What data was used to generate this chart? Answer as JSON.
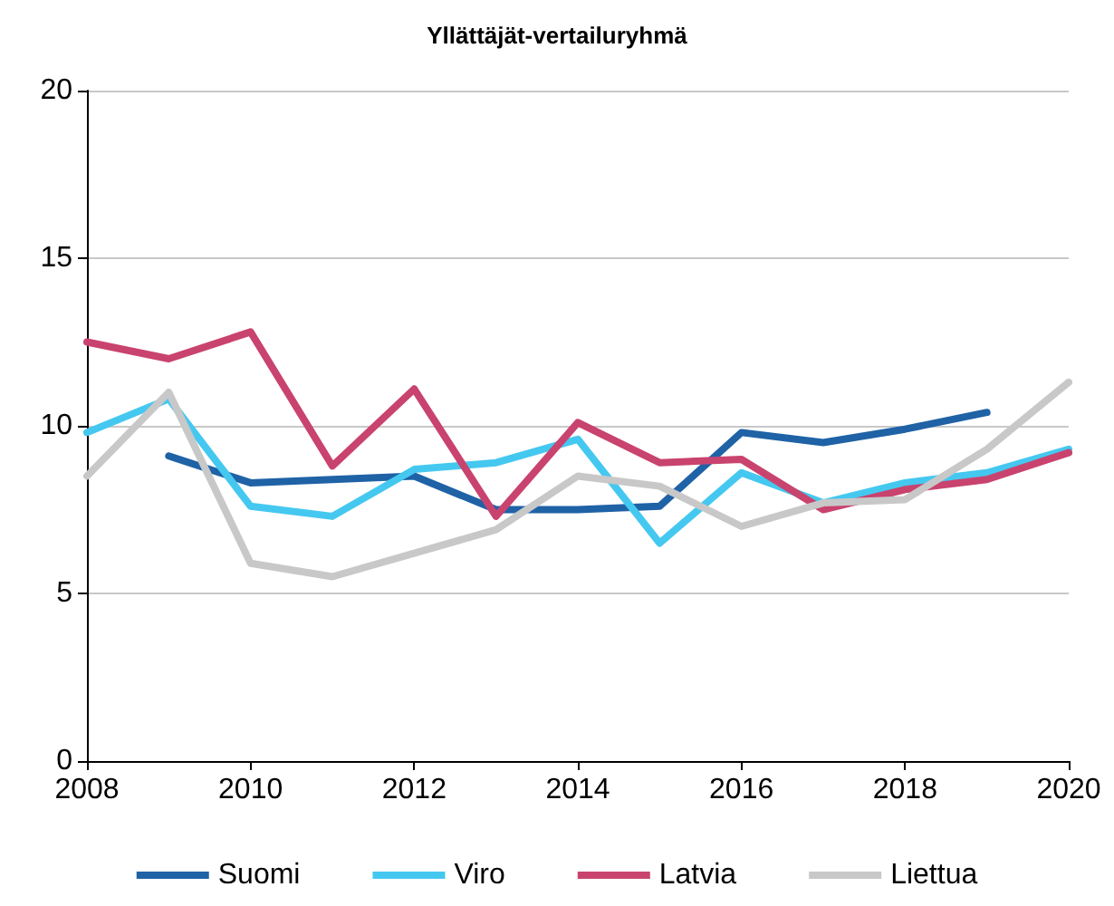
{
  "chart_data": {
    "type": "line",
    "title": "Yllättäjät-vertailuryhmä",
    "x": [
      2008,
      2009,
      2010,
      2011,
      2012,
      2013,
      2014,
      2015,
      2016,
      2017,
      2018,
      2019,
      2020
    ],
    "series": [
      {
        "name": "Suomi",
        "color": "#1f62a6",
        "values": [
          null,
          9.1,
          8.3,
          8.4,
          8.5,
          7.5,
          7.5,
          7.6,
          9.8,
          9.5,
          9.9,
          10.4,
          null
        ]
      },
      {
        "name": "Viro",
        "color": "#45c8f0",
        "values": [
          9.8,
          10.8,
          7.6,
          7.3,
          8.7,
          8.9,
          9.6,
          6.5,
          8.6,
          7.7,
          8.3,
          8.6,
          9.3
        ]
      },
      {
        "name": "Latvia",
        "color": "#c9436f",
        "values": [
          12.5,
          12.0,
          12.8,
          8.8,
          11.1,
          7.3,
          10.1,
          8.9,
          9.0,
          7.5,
          8.1,
          8.4,
          9.2
        ]
      },
      {
        "name": "Liettua",
        "color": "#c8c8c8",
        "values": [
          8.5,
          11.0,
          5.9,
          5.5,
          6.2,
          6.9,
          8.5,
          8.2,
          7.0,
          7.7,
          7.8,
          9.3,
          11.3
        ]
      }
    ],
    "xlim": [
      2008,
      2020
    ],
    "xticks": [
      2008,
      2010,
      2012,
      2014,
      2016,
      2018,
      2020
    ],
    "ylim": [
      0,
      20
    ],
    "yticks": [
      0,
      5,
      10,
      15,
      20
    ],
    "grid": "y",
    "legend": "bottom",
    "marker": "none",
    "line_style": "solid"
  }
}
